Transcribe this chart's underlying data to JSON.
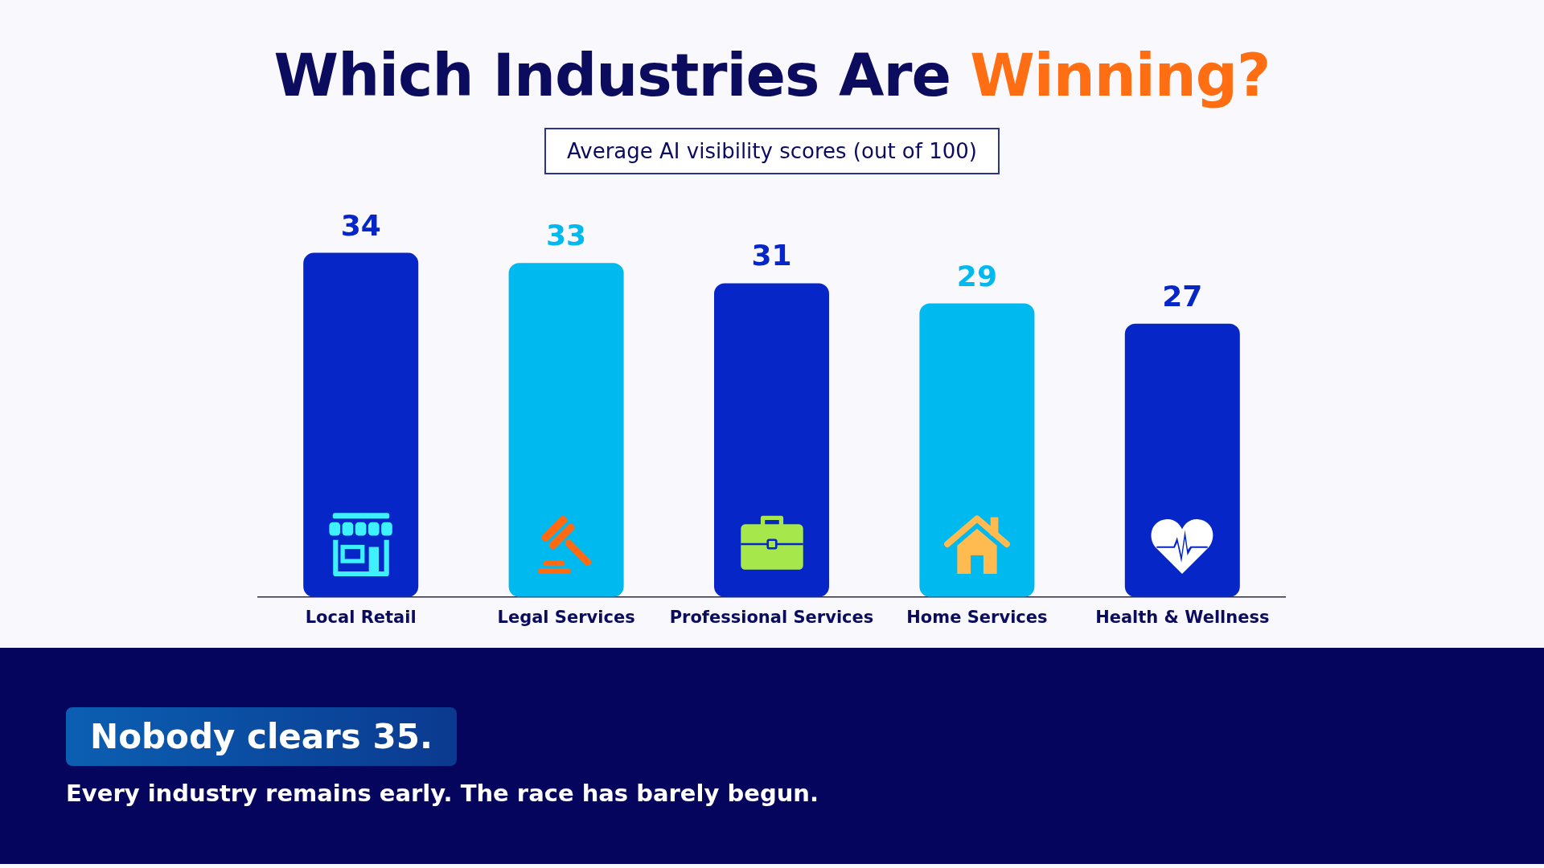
{
  "chart_data": {
    "type": "bar",
    "title": "Which Industries Are Winning?",
    "subtitle": "Average AI visibility scores (out of 100)",
    "categories": [
      "Local Retail",
      "Legal Services",
      "Professional Services",
      "Home Services",
      "Health & Wellness"
    ],
    "values": [
      34,
      33,
      31,
      29,
      27
    ],
    "colors": [
      "#0726c8",
      "#00b9ef",
      "#0726c8",
      "#00b9ef",
      "#0726c8"
    ],
    "data_labels": true,
    "grid": false,
    "legend": false,
    "tick_labels": "x",
    "annotations": [
      "Nobody clears 35.",
      "Every industry remains early. The race has barely begun."
    ]
  }
}
